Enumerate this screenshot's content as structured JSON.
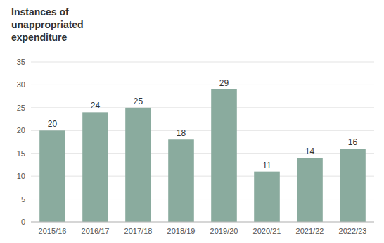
{
  "chart_data": {
    "type": "bar",
    "title": "Instances of\nunappropriated\nexpenditure",
    "categories": [
      "2015/16",
      "2016/17",
      "2017/18",
      "2018/19",
      "2019/20",
      "2020/21",
      "2021/22",
      "2022/23"
    ],
    "values": [
      20,
      24,
      25,
      18,
      29,
      11,
      14,
      16
    ],
    "color": "#8aab9e",
    "ylim": [
      0,
      35
    ],
    "yticks": [
      0,
      5,
      10,
      15,
      20,
      25,
      30,
      35
    ],
    "grid": true,
    "data_labels": true
  }
}
